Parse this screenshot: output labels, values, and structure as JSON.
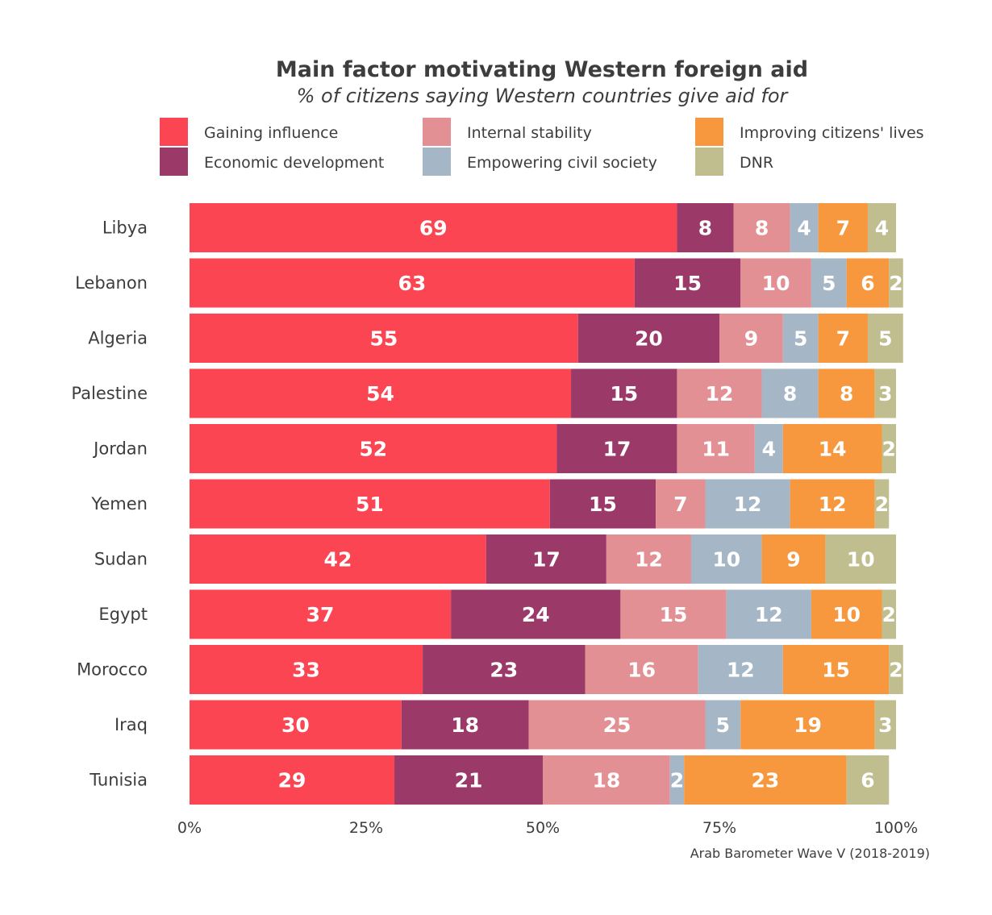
{
  "chart_data": {
    "type": "bar",
    "orientation": "horizontal",
    "stacked": true,
    "title": "Main factor motivating Western foreign aid",
    "subtitle": "% of citizens saying Western countries give aid for",
    "source": "Arab Barometer Wave V (2018-2019)",
    "legend_position": "top",
    "grid": false,
    "xlim": [
      0,
      100
    ],
    "xticks": [
      "0%",
      "25%",
      "50%",
      "75%",
      "100%"
    ],
    "categories": [
      "Libya",
      "Lebanon",
      "Algeria",
      "Palestine",
      "Jordan",
      "Yemen",
      "Sudan",
      "Egypt",
      "Morocco",
      "Iraq",
      "Tunisia"
    ],
    "series": [
      {
        "name": "Gaining influence",
        "color": "#fc4552",
        "values": [
          69,
          63,
          55,
          54,
          52,
          51,
          42,
          37,
          33,
          30,
          29
        ]
      },
      {
        "name": "Economic development",
        "color": "#9b3a68",
        "values": [
          8,
          15,
          20,
          15,
          17,
          15,
          17,
          24,
          23,
          18,
          21
        ]
      },
      {
        "name": "Internal stability",
        "color": "#e29093",
        "values": [
          8,
          10,
          9,
          12,
          11,
          7,
          12,
          15,
          16,
          25,
          18
        ]
      },
      {
        "name": "Empowering civil society",
        "color": "#a5b6c6",
        "values": [
          4,
          5,
          5,
          8,
          4,
          12,
          10,
          12,
          12,
          5,
          2
        ]
      },
      {
        "name": "Improving citizens' lives",
        "color": "#f8983e",
        "values": [
          7,
          6,
          7,
          8,
          14,
          12,
          9,
          10,
          15,
          19,
          23
        ]
      },
      {
        "name": "DNR",
        "color": "#c0bd8e",
        "values": [
          4,
          2,
          5,
          3,
          2,
          2,
          10,
          2,
          2,
          3,
          6
        ]
      }
    ]
  }
}
